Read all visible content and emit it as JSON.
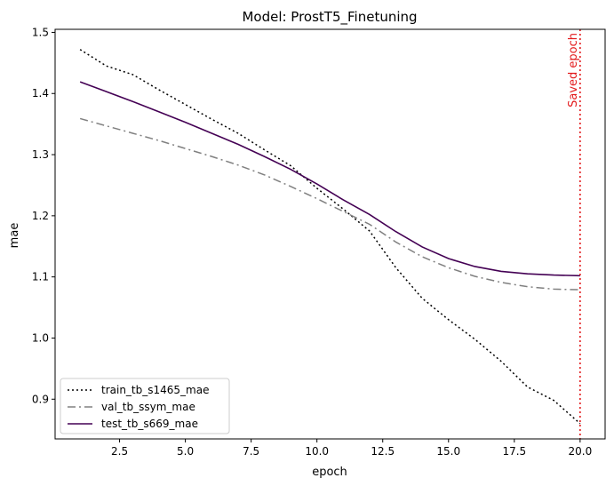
{
  "chart_data": {
    "type": "line",
    "title": "Model: ProstT5_Finetuning",
    "xlabel": "epoch",
    "ylabel": "mae",
    "xlim": [
      0.05,
      20.95
    ],
    "ylim": [
      0.835,
      1.505
    ],
    "xticks": [
      2.5,
      5.0,
      7.5,
      10.0,
      12.5,
      15.0,
      17.5,
      20.0
    ],
    "xtick_labels": [
      "2.5",
      "5.0",
      "7.5",
      "10.0",
      "12.5",
      "15.0",
      "17.5",
      "20.0"
    ],
    "yticks": [
      0.9,
      1.0,
      1.1,
      1.2,
      1.3,
      1.4,
      1.5
    ],
    "ytick_labels": [
      "0.9",
      "1.0",
      "1.1",
      "1.2",
      "1.3",
      "1.4",
      "1.5"
    ],
    "grid": false,
    "legend_position": "lower-left",
    "x": [
      1,
      2,
      3,
      4,
      5,
      6,
      7,
      8,
      9,
      10,
      11,
      12,
      13,
      14,
      15,
      16,
      17,
      18,
      19,
      20
    ],
    "series": [
      {
        "name": "train_tb_s1465_mae",
        "style": "dotted",
        "color": "#000000",
        "values": [
          1.472,
          1.445,
          1.431,
          1.406,
          1.382,
          1.358,
          1.335,
          1.308,
          1.282,
          1.245,
          1.211,
          1.175,
          1.115,
          1.065,
          1.03,
          0.998,
          0.962,
          0.92,
          0.898,
          0.86
        ]
      },
      {
        "name": "val_tb_ssym_mae",
        "style": "dashdot",
        "color": "#808080",
        "values": [
          1.359,
          1.347,
          1.335,
          1.323,
          1.31,
          1.297,
          1.283,
          1.267,
          1.248,
          1.228,
          1.207,
          1.186,
          1.157,
          1.133,
          1.115,
          1.101,
          1.091,
          1.084,
          1.08,
          1.079
        ]
      },
      {
        "name": "test_tb_s669_mae",
        "style": "solid",
        "color": "#440154",
        "values": [
          1.419,
          1.403,
          1.387,
          1.37,
          1.353,
          1.335,
          1.317,
          1.297,
          1.276,
          1.252,
          1.226,
          1.202,
          1.174,
          1.149,
          1.13,
          1.117,
          1.109,
          1.105,
          1.103,
          1.102
        ]
      }
    ],
    "annotations": [
      {
        "type": "vline",
        "x": 20,
        "style": "dotted",
        "color": "#e31a1c",
        "label": "Saved epoch"
      }
    ]
  }
}
